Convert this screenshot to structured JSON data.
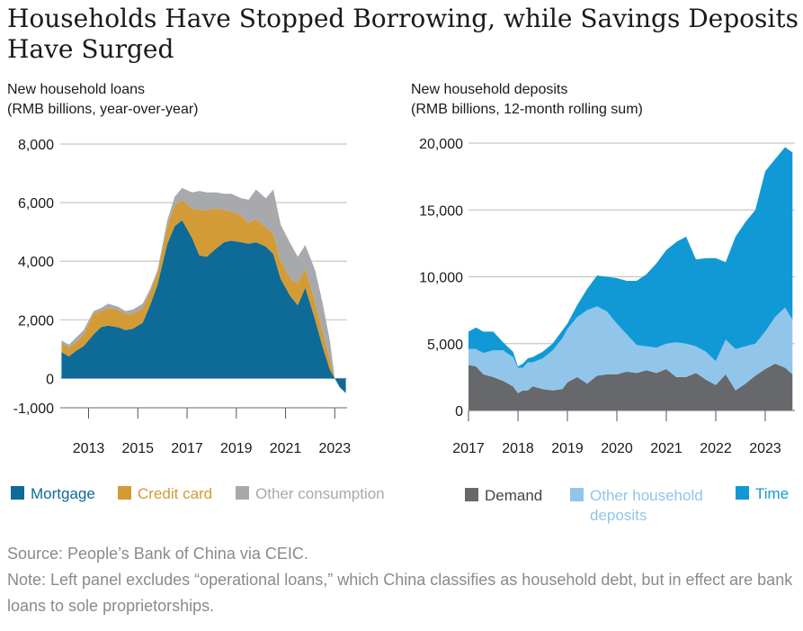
{
  "title": "Households Have Stopped Borrowing, while Savings Deposits Have Surged",
  "source": "Source: People’s Bank of China via CEIC.",
  "note": "Note: Left panel excludes “operational loans,” which China classifies as household debt, but in effect are bank loans to sole proprietorships.",
  "colors": {
    "mortgage": "#0e6a96",
    "credit_card": "#d39b36",
    "other_consumption": "#a7a9ad",
    "demand": "#66686b",
    "other_household": "#92c5ea",
    "time": "#1199d6",
    "grid": "#c8c8c8"
  },
  "chart_data": [
    {
      "type": "area",
      "stacked": true,
      "title_line1": "New household loans",
      "title_line2": "(RMB billions, year-over-year)",
      "x_ticks": [
        "2013",
        "2015",
        "2017",
        "2019",
        "2021",
        "2023"
      ],
      "x_tick_values": [
        2013,
        2015,
        2017,
        2019,
        2021,
        2023
      ],
      "y_ticks": [
        "8,000",
        "6,000",
        "4,000",
        "2,000",
        "0",
        "-1,000"
      ],
      "y_tick_values": [
        8000,
        6000,
        4000,
        2000,
        0,
        -1000
      ],
      "xlim": [
        2011.85,
        2023.5
      ],
      "ylim": [
        -1000,
        8000
      ],
      "grid": true,
      "legend_position": "bottom",
      "x": [
        2011.9,
        2012.2,
        2012.5,
        2012.8,
        2013.2,
        2013.5,
        2013.8,
        2014.2,
        2014.5,
        2014.8,
        2015.2,
        2015.5,
        2015.8,
        2016.2,
        2016.5,
        2016.8,
        2017.2,
        2017.5,
        2017.8,
        2018.2,
        2018.5,
        2018.8,
        2019.2,
        2019.5,
        2019.8,
        2020.2,
        2020.5,
        2020.8,
        2021.2,
        2021.5,
        2021.8,
        2022.2,
        2022.5,
        2022.8,
        2023.0,
        2023.2,
        2023.45
      ],
      "series": [
        {
          "name": "Mortgage",
          "color_key": "mortgage",
          "legend_label": "Mortgage",
          "values": [
            900,
            750,
            950,
            1100,
            1500,
            1750,
            1800,
            1750,
            1650,
            1700,
            1900,
            2500,
            3200,
            4600,
            5200,
            5400,
            4800,
            4200,
            4150,
            4450,
            4650,
            4700,
            4650,
            4600,
            4650,
            4500,
            4250,
            3400,
            2800,
            2500,
            3100,
            2000,
            1100,
            300,
            0,
            -300,
            -500
          ]
        },
        {
          "name": "Credit card",
          "color_key": "credit_card",
          "legend_label": "Credit card",
          "values": [
            300,
            300,
            300,
            400,
            700,
            550,
            600,
            600,
            550,
            500,
            500,
            450,
            400,
            600,
            700,
            700,
            1000,
            1550,
            1600,
            1350,
            1100,
            1000,
            900,
            700,
            800,
            650,
            700,
            600,
            600,
            750,
            650,
            600,
            500,
            350,
            0,
            0,
            0
          ]
        },
        {
          "name": "Other consumption",
          "color_key": "other_consumption",
          "legend_label": "Other consumption",
          "values": [
            100,
            100,
            150,
            150,
            100,
            100,
            150,
            100,
            100,
            150,
            150,
            100,
            100,
            200,
            300,
            400,
            550,
            650,
            600,
            550,
            550,
            600,
            600,
            800,
            1000,
            1000,
            1500,
            1250,
            1200,
            900,
            800,
            1100,
            1000,
            650,
            0,
            0,
            0
          ]
        }
      ]
    },
    {
      "type": "area",
      "stacked": true,
      "title_line1": "New household deposits",
      "title_line2": "(RMB billions, 12-month rolling sum)",
      "x_ticks": [
        "2017",
        "2018",
        "2019",
        "2020",
        "2021",
        "2022",
        "2023"
      ],
      "x_tick_values": [
        2017,
        2018,
        2019,
        2020,
        2021,
        2022,
        2023
      ],
      "y_ticks": [
        "20,000",
        "15,000",
        "10,000",
        "5,000",
        "0"
      ],
      "y_tick_values": [
        20000,
        15000,
        10000,
        5000,
        0
      ],
      "xlim": [
        2017.0,
        2023.6
      ],
      "ylim": [
        0,
        20000
      ],
      "grid": true,
      "legend_position": "bottom",
      "x": [
        2017.0,
        2017.15,
        2017.3,
        2017.5,
        2017.7,
        2017.9,
        2018.0,
        2018.1,
        2018.2,
        2018.3,
        2018.5,
        2018.7,
        2018.9,
        2019.0,
        2019.2,
        2019.4,
        2019.6,
        2019.8,
        2020.0,
        2020.2,
        2020.4,
        2020.6,
        2020.8,
        2021.0,
        2021.2,
        2021.4,
        2021.6,
        2021.8,
        2022.0,
        2022.2,
        2022.4,
        2022.6,
        2022.8,
        2023.0,
        2023.2,
        2023.4,
        2023.55
      ],
      "series": [
        {
          "name": "Demand",
          "color_key": "demand",
          "legend_label": "Demand",
          "values": [
            3400,
            3300,
            2700,
            2500,
            2200,
            1800,
            1300,
            1500,
            1500,
            1800,
            1600,
            1500,
            1600,
            2100,
            2500,
            2000,
            2600,
            2700,
            2700,
            2900,
            2800,
            3000,
            2800,
            3100,
            2500,
            2500,
            2800,
            2300,
            1900,
            2700,
            1500,
            2000,
            2600,
            3100,
            3500,
            3200,
            2700
          ]
        },
        {
          "name": "Other household deposits",
          "color_key": "other_household",
          "legend_label": "Other household deposits",
          "values": [
            1200,
            1300,
            1600,
            2000,
            2300,
            2200,
            1900,
            1700,
            2100,
            1800,
            2300,
            3000,
            3800,
            4000,
            4500,
            5500,
            5200,
            4700,
            3800,
            2800,
            2100,
            1800,
            1900,
            1900,
            2600,
            2500,
            2000,
            2100,
            1800,
            2600,
            3100,
            2800,
            2400,
            2800,
            3500,
            4500,
            4100
          ]
        },
        {
          "name": "Time",
          "color_key": "time",
          "legend_label": "Time",
          "values": [
            1300,
            1600,
            1600,
            1400,
            600,
            400,
            100,
            300,
            300,
            400,
            500,
            500,
            600,
            400,
            900,
            1600,
            2300,
            2600,
            3400,
            4000,
            4800,
            5400,
            6300,
            7000,
            7500,
            8000,
            6500,
            7000,
            7700,
            5800,
            8400,
            9300,
            10000,
            12000,
            11800,
            12000,
            12500
          ]
        }
      ]
    }
  ]
}
